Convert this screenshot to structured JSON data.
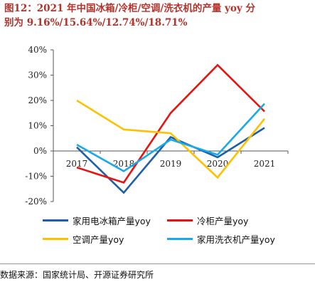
{
  "title": {
    "line1": "图12：2021 年中国冰箱/冷柜/空调/洗衣机的产量 yoy 分",
    "line2": "别为 9.16%/15.64%/12.74%/18.71%"
  },
  "source": "数据来源：国家统计局、开源证券研究所",
  "chart_data": {
    "type": "line",
    "categories": [
      "2017",
      "2018",
      "2019",
      "2020",
      "2021"
    ],
    "ylim": [
      -20,
      40
    ],
    "yticks": [
      -20,
      -10,
      0,
      10,
      20,
      30,
      40
    ],
    "ytick_labels": [
      "-20%",
      "-10%",
      "0%",
      "10%",
      "20%",
      "30%",
      "40%"
    ],
    "series": [
      {
        "name": "家用电冰箱产量yoy",
        "color": "#1f5fa8",
        "values": [
          1.5,
          -16.5,
          5.5,
          -2.5,
          9.16
        ]
      },
      {
        "name": "冷柜产量yoy",
        "color": "#e8120f",
        "values": [
          -6.5,
          -12.5,
          15.0,
          34.0,
          15.64
        ]
      },
      {
        "name": "空调产量yoy",
        "color": "#ffc000",
        "values": [
          20.0,
          8.5,
          7.0,
          -10.5,
          12.74
        ]
      },
      {
        "name": "家用洗衣机产量yoy",
        "color": "#17a9ea",
        "values": [
          2.5,
          -8.0,
          4.5,
          -1.5,
          18.71
        ]
      }
    ],
    "legend_position": "bottom",
    "grid": false
  }
}
